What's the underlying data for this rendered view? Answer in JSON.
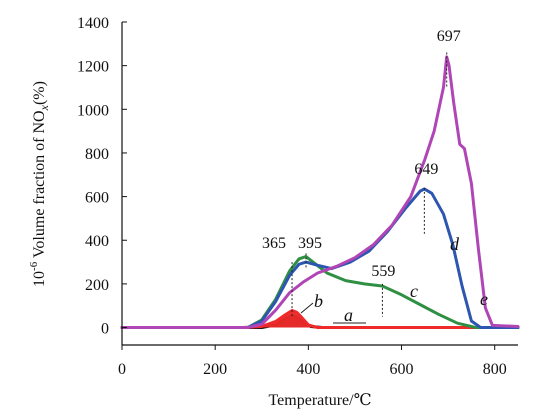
{
  "chart_data": {
    "type": "line",
    "title": "",
    "xlabel": "Temperature/℃",
    "ylabel_parts": {
      "prefix": "10",
      "superscript": "-6",
      "middle": " Volume fraction of NO",
      "subscript": "x",
      "suffix": "(%)"
    },
    "xlim": [
      0,
      850
    ],
    "ylim": [
      -80,
      1400
    ],
    "xticks": [
      0,
      200,
      400,
      600,
      800
    ],
    "yticks": [
      0,
      200,
      400,
      600,
      800,
      1000,
      1200,
      1400
    ],
    "grid": false,
    "legend": "none",
    "series": [
      {
        "label": "a",
        "color": "#111111",
        "points": [
          [
            0,
            0
          ],
          [
            300,
            0
          ],
          [
            330,
            12
          ],
          [
            350,
            40
          ],
          [
            365,
            58
          ],
          [
            375,
            48
          ],
          [
            390,
            20
          ],
          [
            405,
            5
          ],
          [
            430,
            0
          ],
          [
            850,
            0
          ]
        ]
      },
      {
        "label": "b",
        "color": "#ef2a2a",
        "points": [
          [
            0,
            0
          ],
          [
            260,
            0
          ],
          [
            300,
            5
          ],
          [
            330,
            28
          ],
          [
            350,
            58
          ],
          [
            365,
            78
          ],
          [
            375,
            70
          ],
          [
            385,
            48
          ],
          [
            400,
            12
          ],
          [
            420,
            0
          ],
          [
            850,
            0
          ]
        ]
      },
      {
        "label": "c",
        "color": "#2f8f43",
        "points": [
          [
            0,
            0
          ],
          [
            270,
            0
          ],
          [
            300,
            35
          ],
          [
            330,
            130
          ],
          [
            360,
            260
          ],
          [
            380,
            315
          ],
          [
            395,
            325
          ],
          [
            410,
            300
          ],
          [
            440,
            250
          ],
          [
            480,
            215
          ],
          [
            520,
            200
          ],
          [
            559,
            190
          ],
          [
            600,
            150
          ],
          [
            640,
            105
          ],
          [
            680,
            60
          ],
          [
            720,
            20
          ],
          [
            760,
            0
          ],
          [
            850,
            0
          ]
        ]
      },
      {
        "label": "d",
        "color": "#2d56b0",
        "points": [
          [
            0,
            0
          ],
          [
            270,
            0
          ],
          [
            300,
            30
          ],
          [
            330,
            120
          ],
          [
            360,
            240
          ],
          [
            380,
            290
          ],
          [
            395,
            300
          ],
          [
            420,
            285
          ],
          [
            450,
            270
          ],
          [
            490,
            300
          ],
          [
            530,
            350
          ],
          [
            570,
            440
          ],
          [
            610,
            550
          ],
          [
            640,
            625
          ],
          [
            649,
            635
          ],
          [
            665,
            615
          ],
          [
            690,
            520
          ],
          [
            710,
            380
          ],
          [
            730,
            190
          ],
          [
            750,
            30
          ],
          [
            770,
            0
          ],
          [
            850,
            0
          ]
        ]
      },
      {
        "label": "e",
        "color": "#b046b6",
        "points": [
          [
            0,
            0
          ],
          [
            270,
            0
          ],
          [
            300,
            15
          ],
          [
            330,
            80
          ],
          [
            360,
            160
          ],
          [
            390,
            210
          ],
          [
            420,
            250
          ],
          [
            460,
            280
          ],
          [
            500,
            320
          ],
          [
            540,
            380
          ],
          [
            580,
            470
          ],
          [
            620,
            600
          ],
          [
            650,
            770
          ],
          [
            670,
            900
          ],
          [
            690,
            1100
          ],
          [
            697,
            1240
          ],
          [
            702,
            1200
          ],
          [
            712,
            1030
          ],
          [
            725,
            840
          ],
          [
            735,
            820
          ],
          [
            750,
            660
          ],
          [
            765,
            360
          ],
          [
            780,
            90
          ],
          [
            795,
            10
          ],
          [
            850,
            5
          ]
        ]
      }
    ],
    "annotations": [
      {
        "text": "365",
        "x": 365,
        "y_top": 300,
        "y_bottom": 50
      },
      {
        "text": "395",
        "x": 395,
        "y_top": 340,
        "y_bottom": 270
      },
      {
        "text": "559",
        "x": 559,
        "y_top": 200,
        "y_bottom": 50
      },
      {
        "text": "649",
        "x": 649,
        "y_top": 640,
        "y_bottom": 430
      },
      {
        "text": "697",
        "x": 697,
        "y_top": 1260,
        "y_bottom": 1100
      }
    ]
  }
}
